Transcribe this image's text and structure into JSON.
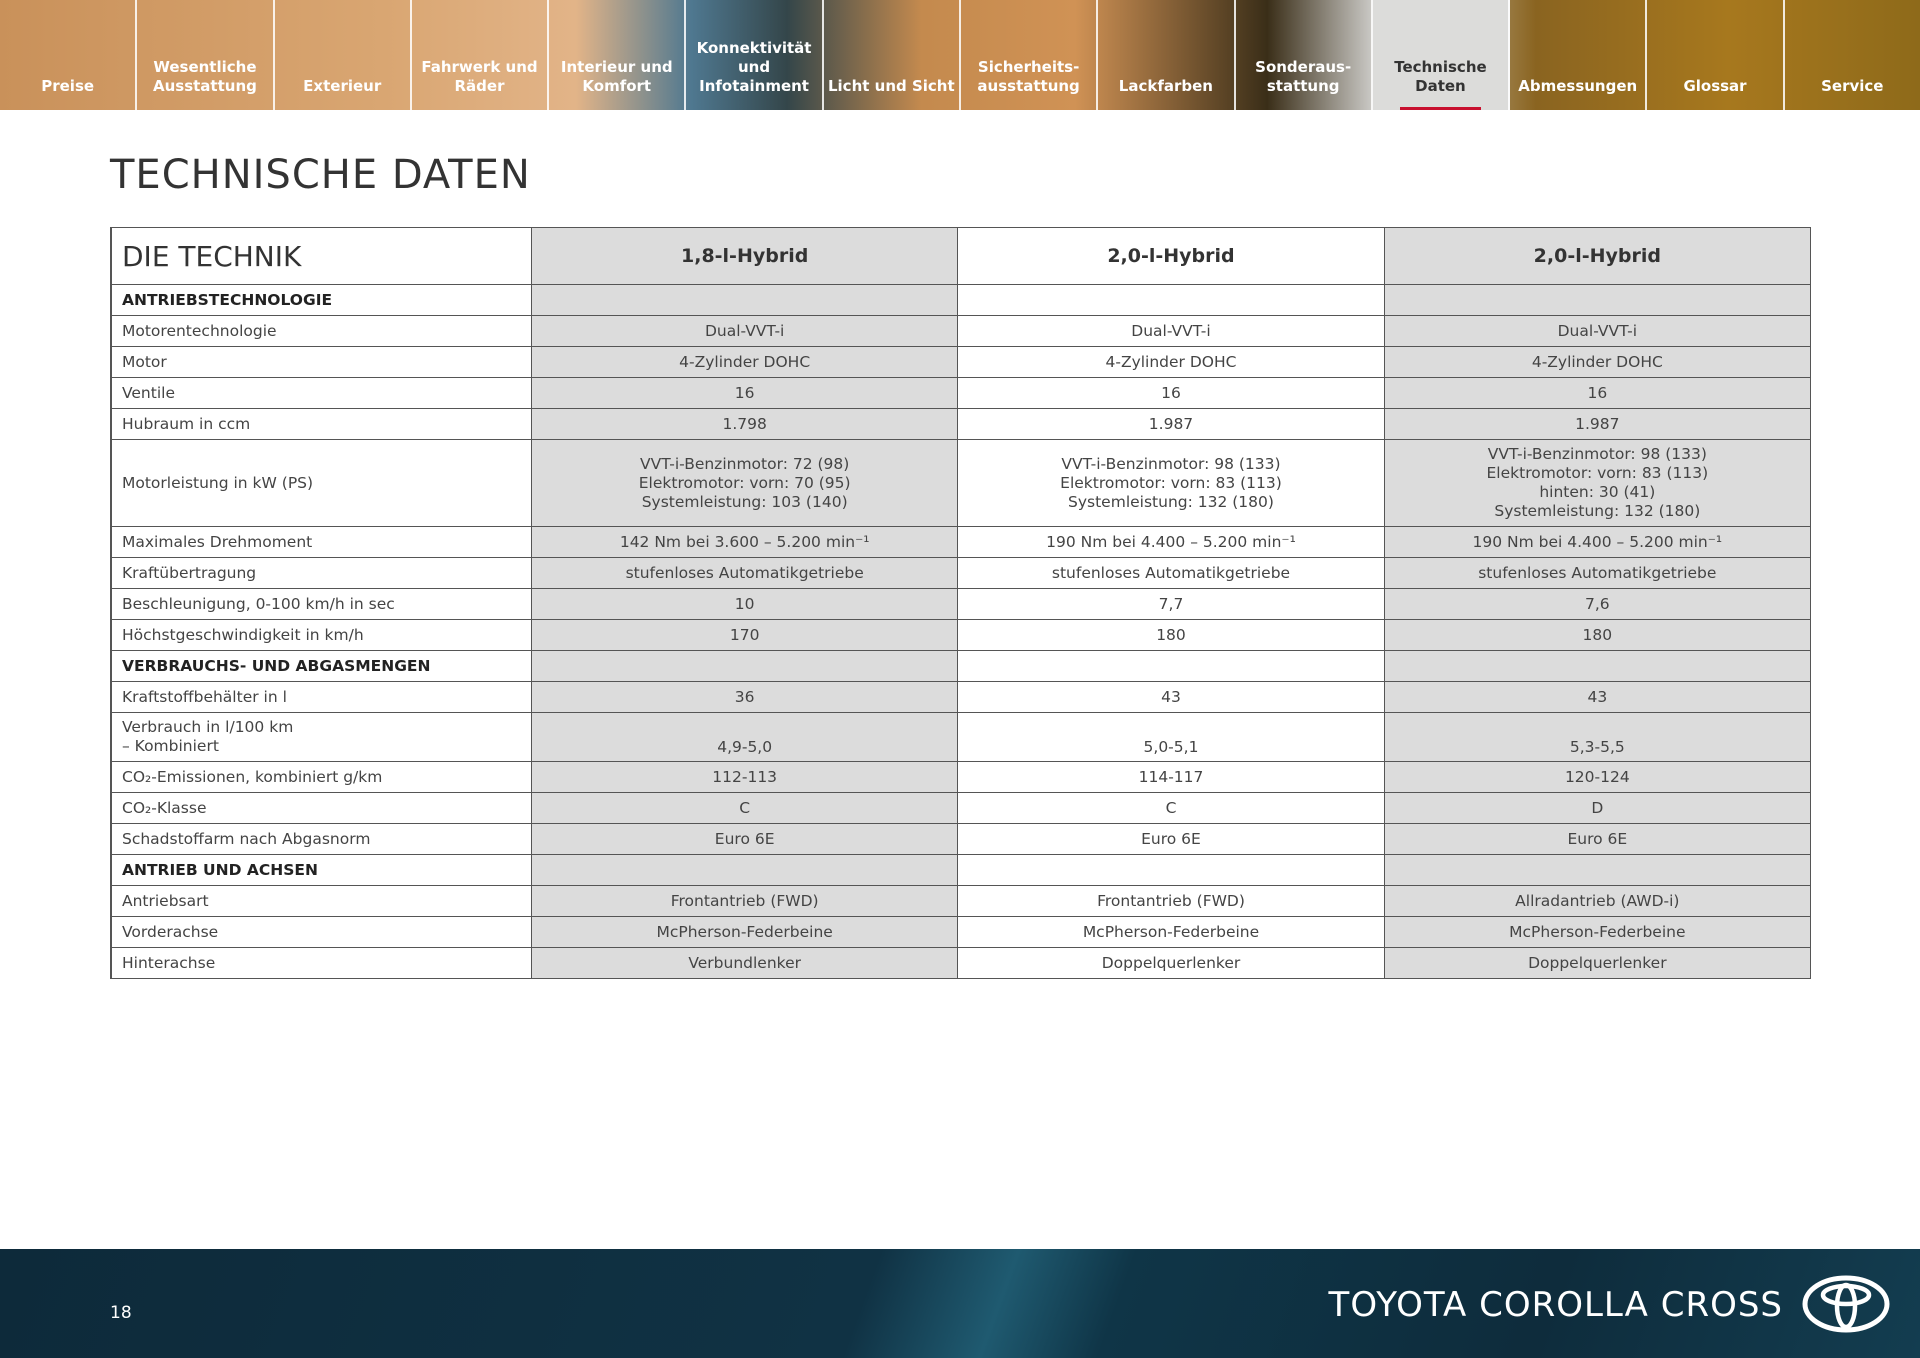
{
  "nav": {
    "tabs": [
      "Preise",
      "Wesentliche Ausstattung",
      "Exterieur",
      "Fahrwerk und Räder",
      "Interieur und Komfort",
      "Konnektivität und Infotainment",
      "Licht und Sicht",
      "Sicherheits-ausstattung",
      "Lackfarben",
      "Sonderaus-stattung",
      "Technische Daten",
      "Abmessungen",
      "Glossar",
      "Service"
    ],
    "active_index": 10,
    "accent": "#c8102e"
  },
  "page": {
    "title": "TECHNISCHE DATEN",
    "page_number": "18",
    "brand": "TOYOTA COROLLA CROSS",
    "logo": "toyota-logo"
  },
  "table": {
    "header": {
      "label": "DIE TECHNIK",
      "columns": [
        "1,8-l-Hybrid",
        "2,0-l-Hybrid",
        "2,0-l-Hybrid"
      ]
    },
    "rows": [
      {
        "label": "ANTRIEBSTECHNOLOGIE",
        "section": true,
        "values": [
          "",
          "",
          ""
        ]
      },
      {
        "label": "Motorentechnologie",
        "values": [
          "Dual-VVT-i",
          "Dual-VVT-i",
          "Dual-VVT-i"
        ]
      },
      {
        "label": "Motor",
        "values": [
          "4-Zylinder DOHC",
          "4-Zylinder DOHC",
          "4-Zylinder DOHC"
        ]
      },
      {
        "label": "Ventile",
        "values": [
          "16",
          "16",
          "16"
        ]
      },
      {
        "label": "Hubraum in ccm",
        "values": [
          "1.798",
          "1.987",
          "1.987"
        ]
      },
      {
        "label": "Motorleistung in kW (PS)",
        "kind": "tall",
        "values": [
          "VVT-i-Benzinmotor: 72 (98)\nElektromotor: vorn: 70 (95)\nSystemleistung: 103 (140)",
          "VVT-i-Benzinmotor: 98 (133)\nElektromotor: vorn: 83 (113)\nSystemleistung: 132 (180)",
          "VVT-i-Benzinmotor: 98 (133)\nElektromotor: vorn: 83 (113)\nhinten: 30 (41)\nSystemleistung: 132 (180)"
        ]
      },
      {
        "label": "Maximales Drehmoment",
        "values": [
          "142 Nm bei 3.600 – 5.200 min⁻¹",
          "190 Nm bei 4.400 – 5.200 min⁻¹",
          "190 Nm bei 4.400 – 5.200 min⁻¹"
        ]
      },
      {
        "label": "Kraftübertragung",
        "values": [
          "stufenloses Automatikgetriebe",
          "stufenloses Automatikgetriebe",
          "stufenloses Automatikgetriebe"
        ]
      },
      {
        "label": "Beschleunigung, 0-100 km/h in sec",
        "values": [
          "10",
          "7,7",
          "7,6"
        ]
      },
      {
        "label": "Höchstgeschwindigkeit in km/h",
        "values": [
          "170",
          "180",
          "180"
        ]
      },
      {
        "label": "VERBRAUCHS- UND ABGASMENGEN",
        "section": true,
        "values": [
          "",
          "",
          ""
        ]
      },
      {
        "label": "Kraftstoffbehälter in l",
        "values": [
          "36",
          "43",
          "43"
        ]
      },
      {
        "label": "Verbrauch in l/100 km\n– Kombiniert",
        "kind": "verb",
        "values": [
          "4,9-5,0",
          "5,0-5,1",
          "5,3-5,5"
        ]
      },
      {
        "label": "CO₂-Emissionen, kombiniert g/km",
        "values": [
          "112-113",
          "114-117",
          "120-124"
        ]
      },
      {
        "label": "CO₂-Klasse",
        "values": [
          "C",
          "C",
          "D"
        ]
      },
      {
        "label": "Schadstoffarm nach Abgasnorm",
        "values": [
          "Euro 6E",
          "Euro 6E",
          "Euro 6E"
        ]
      },
      {
        "label": "ANTRIEB UND ACHSEN",
        "section": true,
        "values": [
          "",
          "",
          ""
        ]
      },
      {
        "label": "Antriebsart",
        "values": [
          "Frontantrieb (FWD)",
          "Frontantrieb (FWD)",
          "Allradantrieb (AWD-i)"
        ]
      },
      {
        "label": "Vorderachse",
        "values": [
          "McPherson-Federbeine",
          "McPherson-Federbeine",
          "McPherson-Federbeine"
        ]
      },
      {
        "label": "Hinterachse",
        "values": [
          "Verbundlenker",
          "Doppelquerlenker",
          "Doppelquerlenker"
        ]
      }
    ]
  }
}
